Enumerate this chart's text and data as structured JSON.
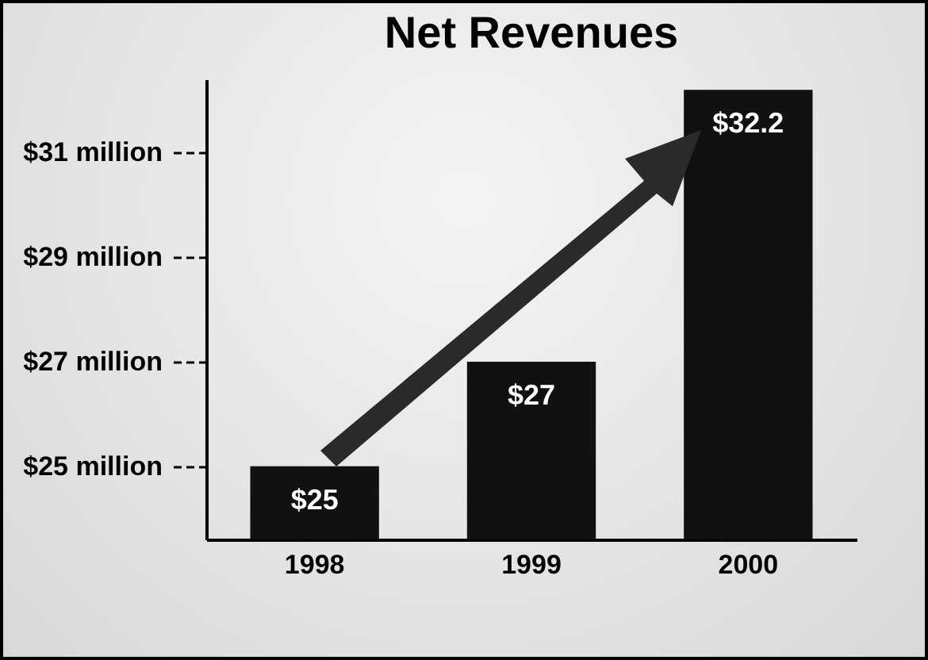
{
  "chart_data": {
    "type": "bar",
    "title": "Net Revenues",
    "categories": [
      "1998",
      "1999",
      "2000"
    ],
    "values": [
      25,
      27,
      32.2
    ],
    "color": "#111111",
    "value_labels": [
      "$25",
      "$27",
      "$32.2"
    ],
    "ylim": [
      23.6,
      32.4
    ],
    "yticks": [
      {
        "value": 25,
        "label": "$25 million"
      },
      {
        "value": 27,
        "label": "$27 million"
      },
      {
        "value": 29,
        "label": "$29 million"
      },
      {
        "value": 31,
        "label": "$31 million"
      }
    ],
    "grid": false
  }
}
